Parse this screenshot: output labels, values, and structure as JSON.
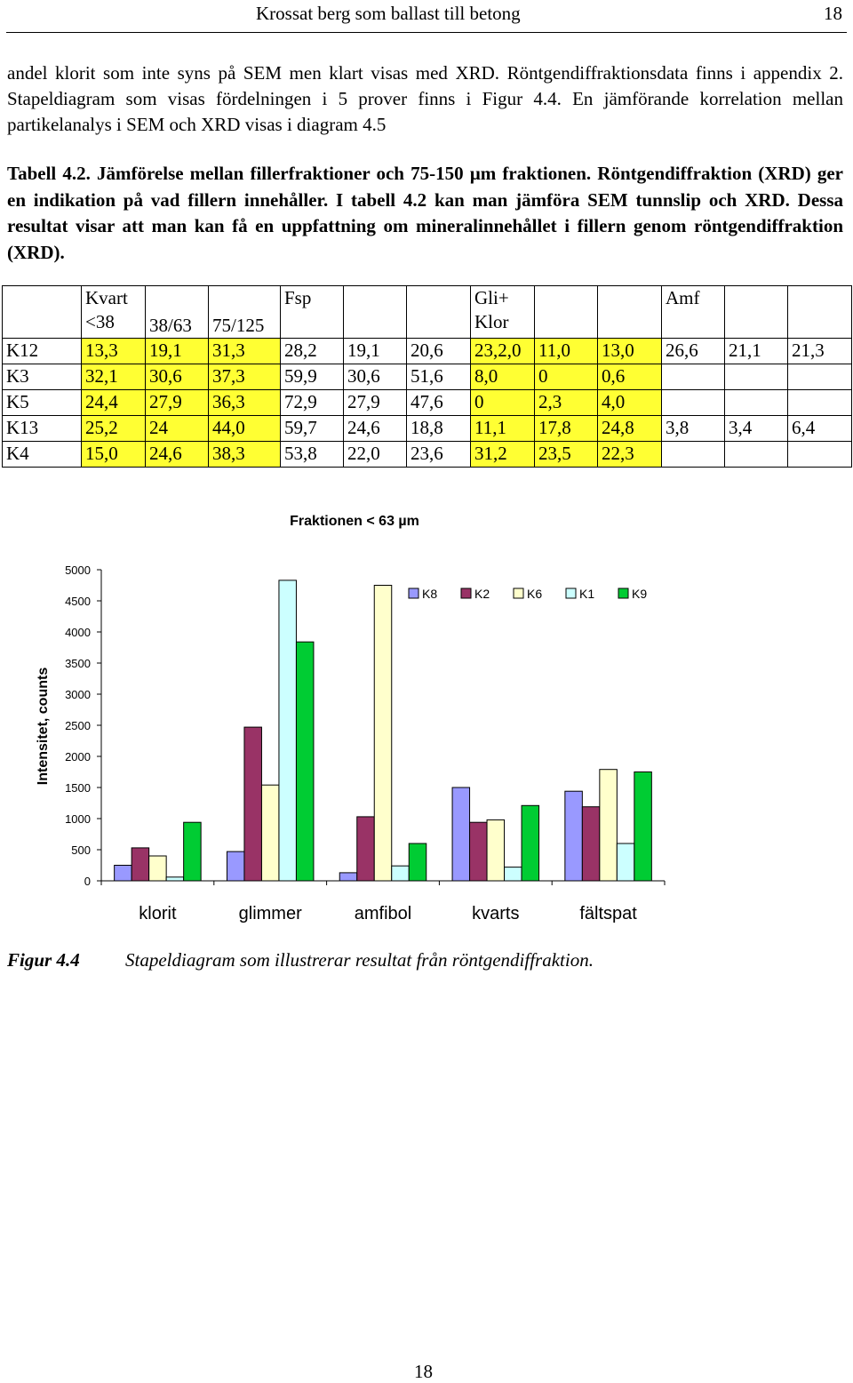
{
  "header": {
    "title": "Krossat berg som ballast till betong",
    "page": "18"
  },
  "intro": "andel klorit som inte syns på SEM men klart visas med XRD. Röntgendiffraktionsdata finns i appendix 2. Stapeldiagram som visas fördelningen i 5 prover finns i Figur 4.4. En jämförande korrelation mellan partikelanalys i SEM och XRD visas i diagram 4.5",
  "table_caption": "Tabell 4.2.   Jämförelse mellan fillerfraktioner och 75-150 µm fraktionen. Röntgendiffraktion (XRD) ger en indikation på vad fillern innehåller. I tabell 4.2 kan man jämföra SEM tunnslip och XRD. Dessa resultat visar att man kan få en uppfattning om mineralinnehållet i fillern genom röntgendiffraktion (XRD).",
  "table": {
    "header": [
      "",
      "Kvart <38",
      "38/63",
      "75/125",
      "Fsp",
      "",
      "",
      "Gli+ Klor",
      "",
      "",
      "Amf",
      "",
      ""
    ],
    "rows": [
      [
        "K12",
        "13,3",
        "19,1",
        "31,3",
        "28,2",
        "19,1",
        "20,6",
        "23,2,0",
        "11,0",
        "13,0",
        "26,6",
        "21,1",
        "21,3"
      ],
      [
        "K3",
        "32,1",
        "30,6",
        "37,3",
        "59,9",
        "30,6",
        "51,6",
        "8,0",
        "0",
        "0,6",
        "",
        "",
        ""
      ],
      [
        "K5",
        "24,4",
        "27,9",
        "36,3",
        "72,9",
        "27,9",
        "47,6",
        "0",
        "2,3",
        "4,0",
        "",
        "",
        ""
      ],
      [
        "K13",
        "25,2",
        "24",
        "44,0",
        "59,7",
        "24,6",
        "18,8",
        "11,1",
        "17,8",
        "24,8",
        "3,8",
        "3,4",
        "6,4"
      ],
      [
        "K4",
        "15,0",
        "24,6",
        "38,3",
        "53,8",
        "22,0",
        "23,6",
        "31,2",
        "23,5",
        "22,3",
        "",
        "",
        ""
      ]
    ]
  },
  "chart_data": {
    "type": "bar",
    "title": "Fraktionen < 63 µm",
    "xlabel": "",
    "ylabel": "Intensitet, counts",
    "ylim": [
      0,
      5000
    ],
    "yticks": [
      "0",
      "500",
      "1000",
      "1500",
      "2000",
      "2500",
      "3000",
      "3500",
      "4000",
      "4500",
      "5000"
    ],
    "categories": [
      "klorit",
      "glimmer",
      "amfibol",
      "kvarts",
      "fältspat"
    ],
    "series": [
      {
        "name": "K8",
        "color": "#9999ff",
        "values": [
          250,
          470,
          130,
          1500,
          1440
        ]
      },
      {
        "name": "K2",
        "color": "#993366",
        "values": [
          530,
          2470,
          1030,
          940,
          1190
        ]
      },
      {
        "name": "K6",
        "color": "#ffffcc",
        "values": [
          400,
          1540,
          4750,
          980,
          1790
        ]
      },
      {
        "name": "K1",
        "color": "#ccffff",
        "values": [
          60,
          4830,
          240,
          220,
          600
        ]
      },
      {
        "name": "K9",
        "color": "#00cc33",
        "values": [
          940,
          3840,
          600,
          1210,
          1750
        ]
      }
    ],
    "legend_position": "top-right"
  },
  "figure": {
    "number": "Figur 4.4",
    "caption": "Stapeldiagram som illustrerar resultat från röntgendiffraktion."
  },
  "footer_page": "18"
}
